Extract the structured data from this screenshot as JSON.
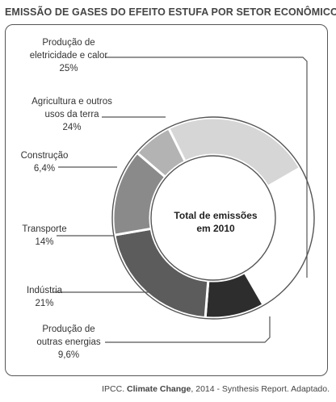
{
  "title": "EMISSÃO DE GASES DO EFEITO ESTUFA POR SETOR ECONÔMICO",
  "center_label": {
    "line1": "Total de emissões",
    "line2": "em 2010"
  },
  "source": {
    "prefix": "IPCC. ",
    "bold": "Climate Change",
    "suffix": ", 2014 - Synthesis Report. Adaptado."
  },
  "chart_data": {
    "type": "pie",
    "title": "EMISSÃO DE GASES DO EFEITO ESTUFA POR SETOR ECONÔMICO",
    "center_text": "Total de emissões em 2010",
    "unit": "%",
    "slices": [
      {
        "label_lines": [
          "Produção de",
          "eletricidade e calor"
        ],
        "value_text": "25%",
        "value": 25,
        "color": "#ffffff"
      },
      {
        "label_lines": [
          "Produção de",
          "outras energias"
        ],
        "value_text": "9,6%",
        "value": 9.6,
        "color": "#2d2d2d"
      },
      {
        "label_lines": [
          "Indústria"
        ],
        "value_text": "21%",
        "value": 21,
        "color": "#5c5c5c"
      },
      {
        "label_lines": [
          "Transporte"
        ],
        "value_text": "14%",
        "value": 14,
        "color": "#8a8a8a"
      },
      {
        "label_lines": [
          "Construção"
        ],
        "value_text": "6,4%",
        "value": 6.4,
        "color": "#b3b3b3"
      },
      {
        "label_lines": [
          "Agricultura e outros",
          "usos da terra"
        ],
        "value_text": "24%",
        "value": 24,
        "color": "#d6d6d6"
      }
    ]
  }
}
